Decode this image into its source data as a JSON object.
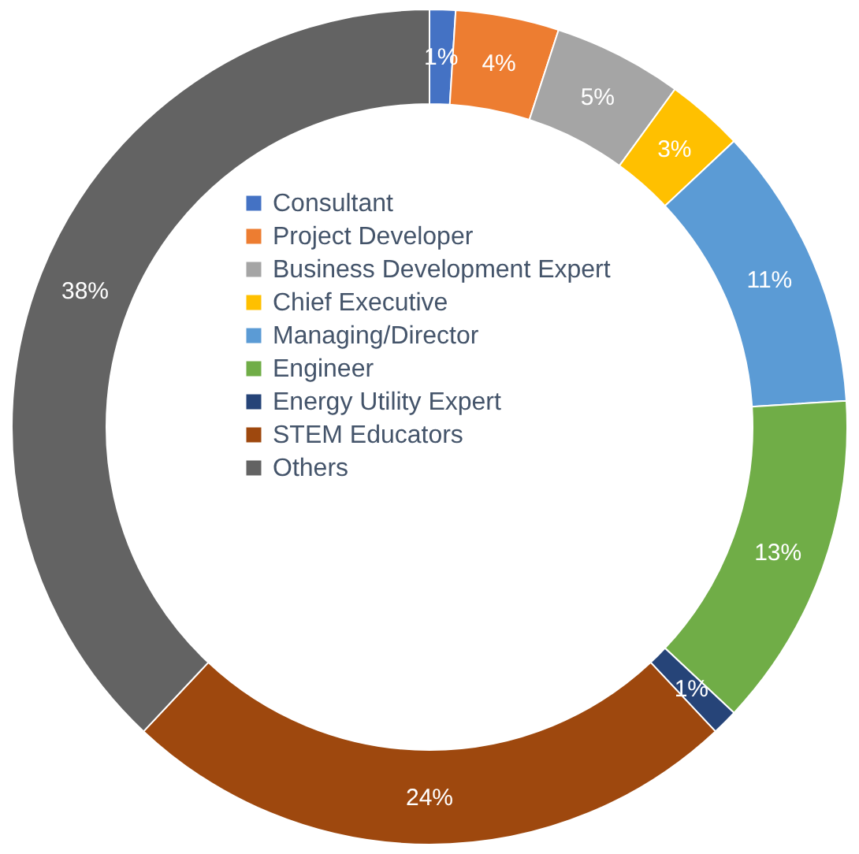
{
  "chart_data": {
    "type": "donut",
    "categories": [
      "Consultant",
      "Project Developer",
      "Business Development Expert",
      "Chief Executive",
      "Managing/Director",
      "Engineer",
      "Energy Utility Expert",
      "STEM Educators",
      "Others"
    ],
    "values": [
      1,
      4,
      5,
      3,
      11,
      13,
      1,
      24,
      38
    ],
    "value_labels": [
      "1%",
      "4%",
      "5%",
      "3%",
      "11%",
      "13%",
      "1%",
      "24%",
      "38%"
    ],
    "colors": [
      "#4472c4",
      "#ed7d31",
      "#a5a5a5",
      "#ffc000",
      "#5b9bd5",
      "#70ad47",
      "#264478",
      "#9e480e",
      "#636363"
    ],
    "legend": "center"
  }
}
